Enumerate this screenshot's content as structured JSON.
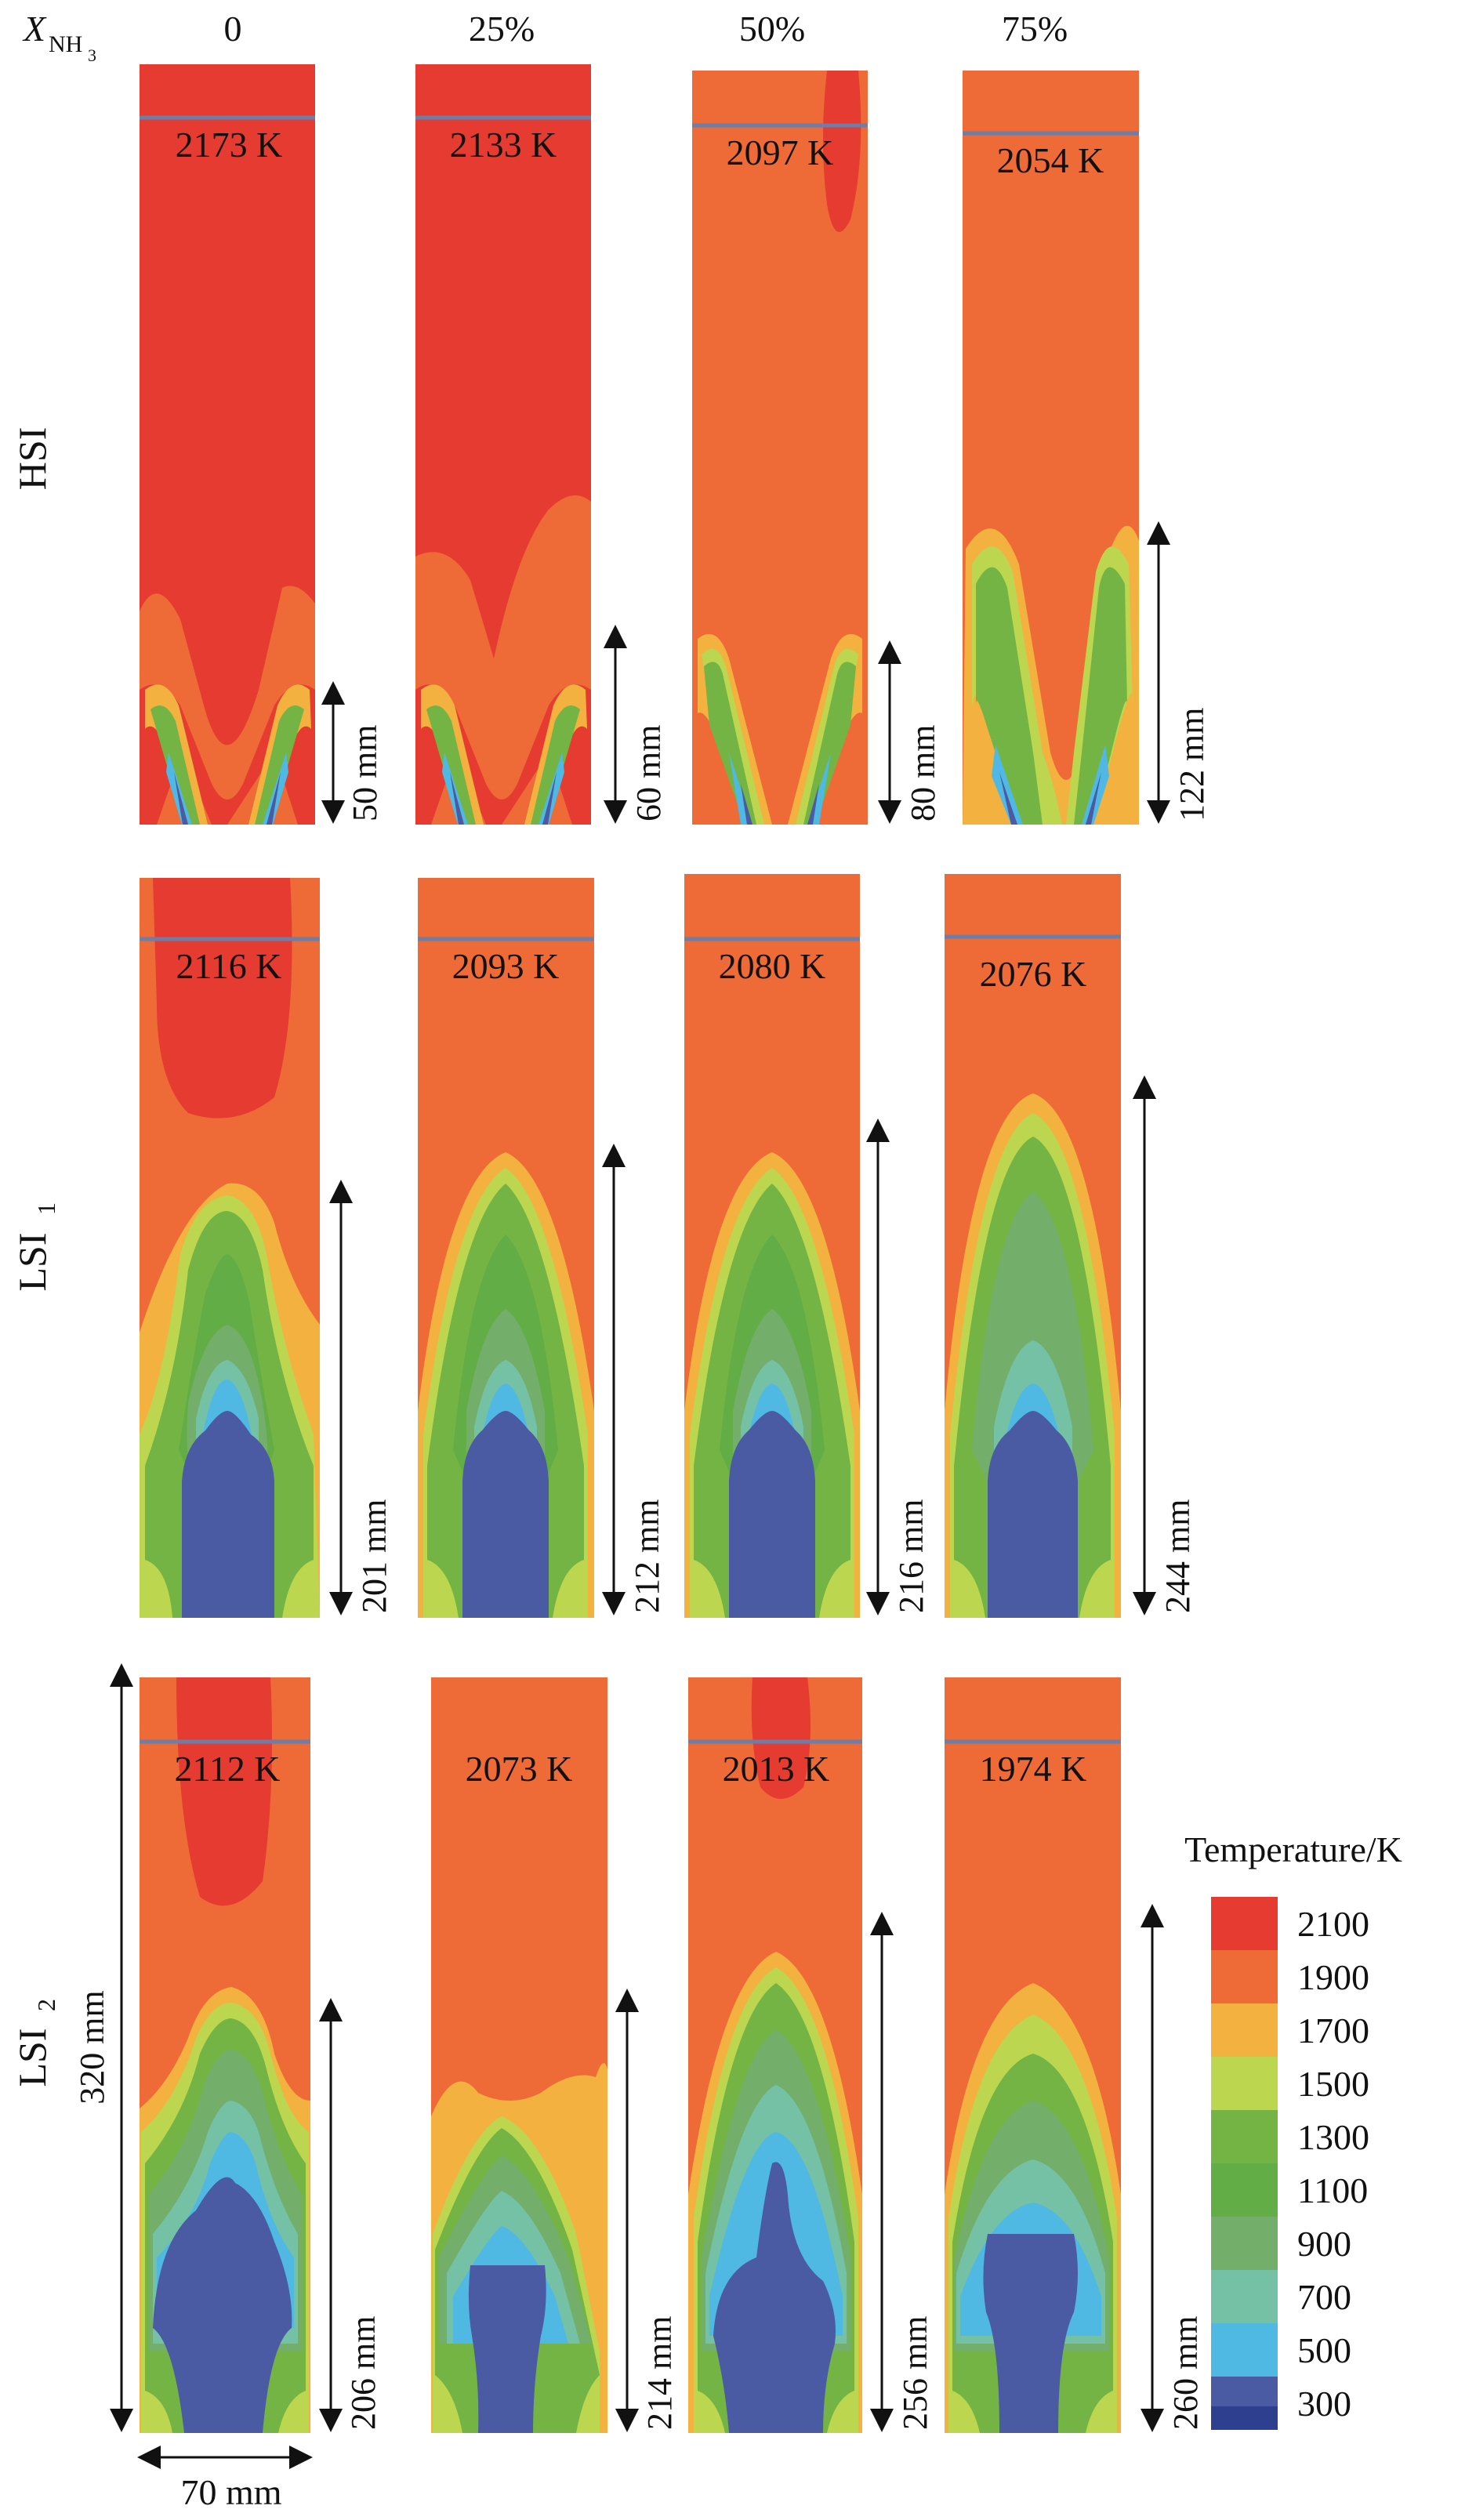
{
  "header": {
    "x_label_main": "X",
    "x_label_sub": "NH",
    "x_label_subsub": "3",
    "columns": [
      "0",
      "25%",
      "50%",
      "75%"
    ]
  },
  "rows": [
    {
      "label_main": "HSI",
      "label_sub": "",
      "panels": [
        {
          "temp_label": "2173 K",
          "length_label": "50 mm",
          "length_mm": 50
        },
        {
          "temp_label": "2133 K",
          "length_label": "60 mm",
          "length_mm": 60
        },
        {
          "temp_label": "2097 K",
          "length_label": "80 mm",
          "length_mm": 80
        },
        {
          "temp_label": "2054 K",
          "length_label": "122 mm",
          "length_mm": 122
        }
      ]
    },
    {
      "label_main": "LSI",
      "label_sub": "1",
      "panels": [
        {
          "temp_label": "2116 K",
          "length_label": "201 mm",
          "length_mm": 201
        },
        {
          "temp_label": "2093 K",
          "length_label": "212 mm",
          "length_mm": 212
        },
        {
          "temp_label": "2080 K",
          "length_label": "216 mm",
          "length_mm": 216
        },
        {
          "temp_label": "2076 K",
          "length_label": "244 mm",
          "length_mm": 244
        }
      ]
    },
    {
      "label_main": "LSI",
      "label_sub": "2",
      "panels": [
        {
          "temp_label": "2112 K",
          "length_label": "206 mm",
          "length_mm": 206
        },
        {
          "temp_label": "2073 K",
          "length_label": "214 mm",
          "length_mm": 214
        },
        {
          "temp_label": "2013 K",
          "length_label": "256 mm",
          "length_mm": 256
        },
        {
          "temp_label": "1974 K",
          "length_label": "260 mm",
          "length_mm": 260
        }
      ]
    }
  ],
  "dimensions": {
    "height_label": "320 mm",
    "width_label": "70 mm"
  },
  "legend": {
    "title": "Temperature/K",
    "entries": [
      {
        "label": "2100",
        "color": "#e53b30"
      },
      {
        "label": "1900",
        "color": "#ee6a37"
      },
      {
        "label": "1700",
        "color": "#f3b23f"
      },
      {
        "label": "1500",
        "color": "#bcd650"
      },
      {
        "label": "1300",
        "color": "#74b444"
      },
      {
        "label": "1100",
        "color": "#62ad45"
      },
      {
        "label": "900",
        "color": "#73ae6a"
      },
      {
        "label": "700",
        "color": "#74c1a6"
      },
      {
        "label": "500",
        "color": "#4fb9e3"
      },
      {
        "label": "300",
        "color": "#4a5aa3"
      }
    ],
    "bottom_color": "#2f3f8f"
  },
  "colors": {
    "hot": "#e53b30",
    "orange": "#ee6a37",
    "amber": "#f3b23f",
    "lime": "#bcd650",
    "green": "#74b444",
    "teal": "#74c1a6",
    "cyan": "#4fb9e3",
    "navy": "#4a5aa3",
    "deep": "#2f3f8f",
    "marker_line": "#6b7fa8"
  }
}
